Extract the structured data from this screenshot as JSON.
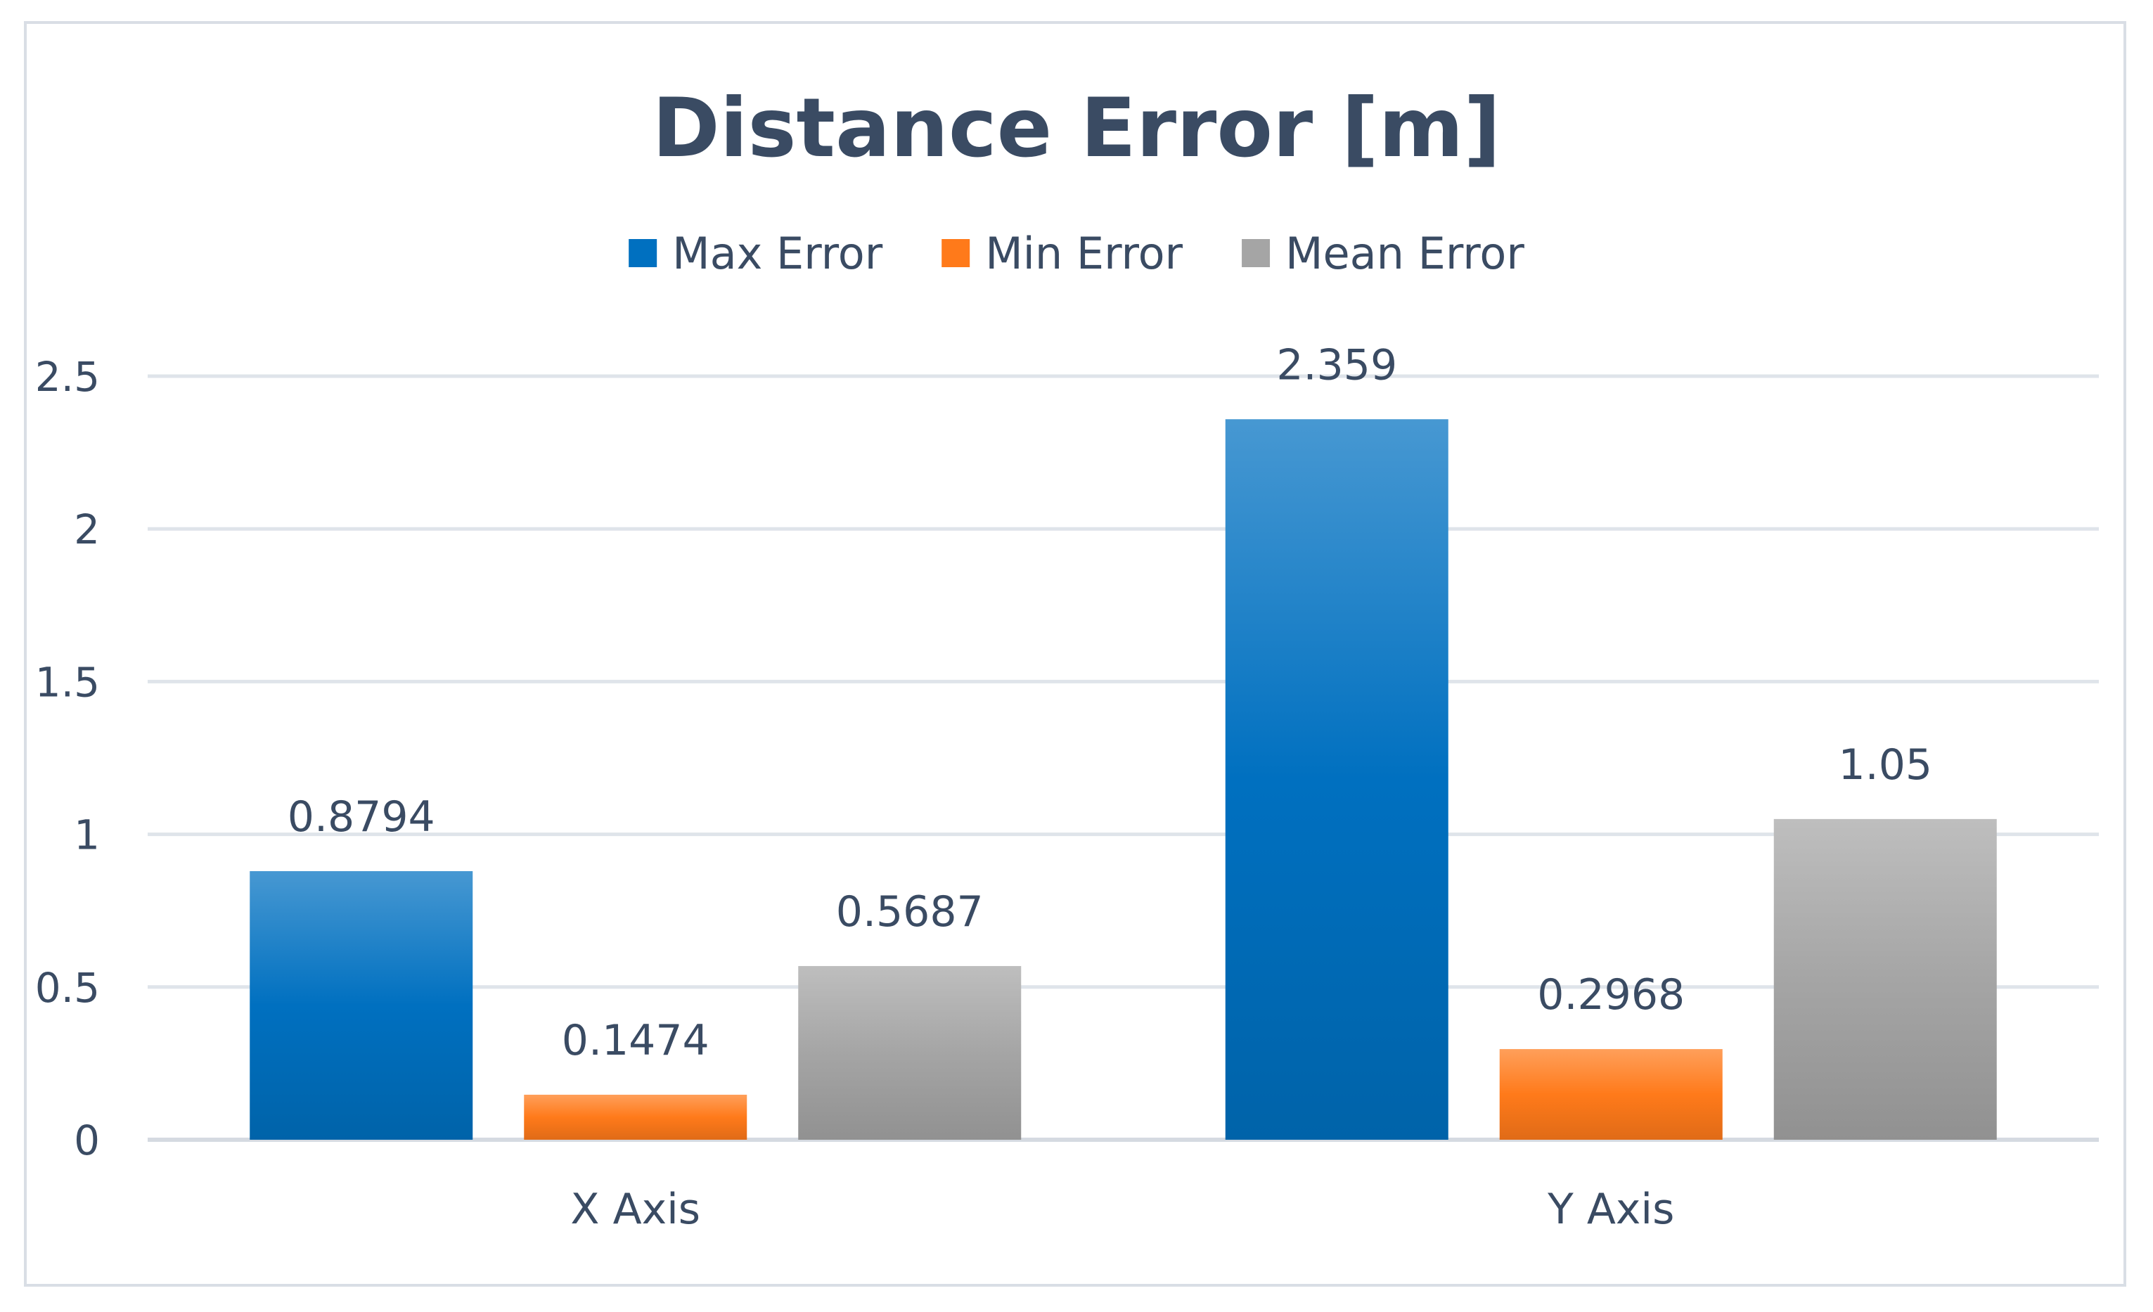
{
  "chart_data": {
    "type": "bar",
    "title": "Distance Error [m]",
    "xlabel": "",
    "ylabel": "",
    "categories": [
      "X Axis",
      "Y Axis"
    ],
    "series": [
      {
        "name": "Max Error",
        "values": [
          0.8794,
          2.359
        ],
        "labels": [
          "0.8794",
          "2.359"
        ],
        "color": "#0070c0"
      },
      {
        "name": "Min Error",
        "values": [
          0.1474,
          0.2968
        ],
        "labels": [
          "0.1474",
          "0.2968"
        ],
        "color": "#ff7a1a"
      },
      {
        "name": "Mean Error",
        "values": [
          0.5687,
          1.05
        ],
        "labels": [
          "0.5687",
          "1.05"
        ],
        "color": "#a5a5a5"
      }
    ],
    "ylim": [
      0,
      2.5
    ],
    "yticks": [
      "0",
      "0.5",
      "1",
      "1.5",
      "2",
      "2.5"
    ],
    "ytick_values": [
      0,
      0.5,
      1,
      1.5,
      2,
      2.5
    ],
    "grid": true,
    "legend_position": "top-center",
    "data_labels": true
  }
}
